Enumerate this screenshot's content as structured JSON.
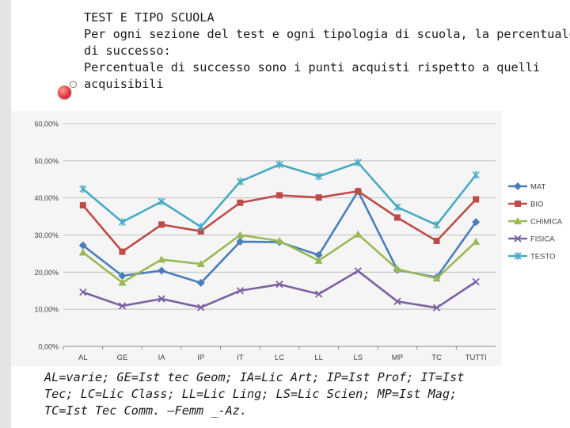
{
  "header": {
    "line1": "TEST E TIPO SCUOLA",
    "line2": "Per ogni sezione del test e ogni tipologia di scuola, la percentuale",
    "line3": "di successo:",
    "line4": "Percentuale di successo sono i punti acquisti rispetto a quelli",
    "line5": "acquisibili"
  },
  "footer": {
    "line1": "AL=varie; GE=Ist tec Geom; IA=Lic Art; IP=Ist Prof; IT=Ist",
    "line2": "Tec; LC=Lic Class; LL=Lic Ling; LS=Lic Scien; MP=Ist Mag;",
    "line3": "TC=Ist Tec Comm. –Femm _-Az."
  },
  "chart_data": {
    "type": "line",
    "categories": [
      "AL",
      "GE",
      "IA",
      "IP",
      "IT",
      "LC",
      "LL",
      "LS",
      "MP",
      "TC",
      "TUTTI"
    ],
    "y_tick_labels": [
      "0,00%",
      "10,00%",
      "20,00%",
      "30,00%",
      "40,00%",
      "50,00%",
      "60,00%"
    ],
    "ylim": [
      0,
      60
    ],
    "grid": true,
    "legend_position": "right",
    "series": [
      {
        "name": "MAT",
        "color": "#4a7ebb",
        "marker": "diamond",
        "values": [
          27.2,
          19.0,
          20.4,
          17.1,
          28.2,
          28.1,
          24.6,
          41.8,
          20.6,
          18.6,
          33.5
        ]
      },
      {
        "name": "BIO",
        "color": "#be4b48",
        "marker": "square",
        "values": [
          38.0,
          25.5,
          32.8,
          31.0,
          38.7,
          40.7,
          40.1,
          41.8,
          34.7,
          28.4,
          39.6
        ]
      },
      {
        "name": "CHIMICA",
        "color": "#98b954",
        "marker": "triangle",
        "values": [
          25.3,
          17.2,
          23.4,
          22.2,
          30.0,
          28.4,
          23.1,
          30.2,
          20.8,
          18.3,
          28.2
        ]
      },
      {
        "name": "FISICA",
        "color": "#7d60a0",
        "marker": "x",
        "values": [
          14.6,
          10.9,
          12.8,
          10.5,
          15.0,
          16.7,
          14.1,
          20.3,
          12.1,
          10.4,
          17.4
        ]
      },
      {
        "name": "TESTO",
        "color": "#46aac5",
        "marker": "star",
        "values": [
          42.4,
          33.5,
          39.0,
          32.2,
          44.4,
          49.0,
          45.8,
          49.5,
          37.5,
          32.7,
          46.2
        ]
      }
    ]
  }
}
